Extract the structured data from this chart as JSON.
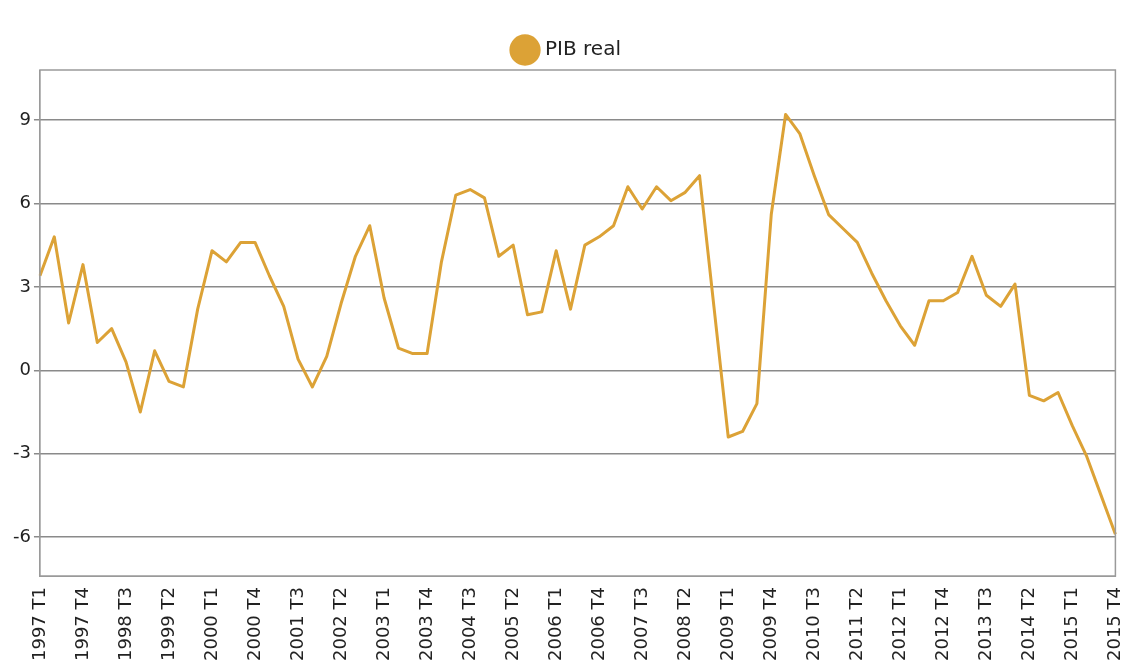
{
  "chart_data": {
    "type": "line",
    "categories": [
      "1997 T1",
      null,
      null,
      "1997 T4",
      null,
      null,
      "1998 T3",
      null,
      null,
      "1999 T2",
      null,
      null,
      "2000 T1",
      null,
      null,
      "2000 T4",
      null,
      null,
      "2001 T3",
      null,
      null,
      "2002 T2",
      null,
      null,
      "2003 T1",
      null,
      null,
      "2003 T4",
      null,
      null,
      "2004 T3",
      null,
      null,
      "2005 T2",
      null,
      null,
      "2006 T1",
      null,
      null,
      "2006 T4",
      null,
      null,
      "2007 T3",
      null,
      null,
      "2008 T2",
      null,
      null,
      "2009 T1",
      null,
      null,
      "2009 T4",
      null,
      null,
      "2010 T3",
      null,
      null,
      "2011 T2",
      null,
      null,
      "2012 T1",
      null,
      null,
      "2012 T4",
      null,
      null,
      "2013 T3",
      null,
      null,
      "2014 T2",
      null,
      null,
      "2015 T1",
      null,
      null,
      "2015 T4"
    ],
    "series": [
      {
        "name": "PIB real",
        "color": "#dca236",
        "values": [
          3.4,
          4.8,
          1.7,
          3.8,
          1.0,
          1.5,
          0.3,
          -1.5,
          0.7,
          -0.4,
          -0.6,
          2.2,
          4.3,
          3.9,
          4.6,
          4.6,
          3.4,
          2.3,
          0.4,
          -0.6,
          0.5,
          2.4,
          4.1,
          5.2,
          2.6,
          0.8,
          0.6,
          0.6,
          3.9,
          6.3,
          6.5,
          6.2,
          4.1,
          4.5,
          2.0,
          2.1,
          4.3,
          2.2,
          4.5,
          4.8,
          5.2,
          6.6,
          5.8,
          6.6,
          6.1,
          6.4,
          7.0,
          2.3,
          -2.4,
          -2.2,
          -1.2,
          5.6,
          9.2,
          8.5,
          7.0,
          5.6,
          5.1,
          4.6,
          3.5,
          2.5,
          1.6,
          0.9,
          2.5,
          2.5,
          2.8,
          4.1,
          2.7,
          2.3,
          3.1,
          -0.9,
          -1.1,
          -0.8,
          -2.0,
          -3.1,
          -4.5,
          -5.9
        ]
      }
    ],
    "ylim": [
      -7.4,
      10.8
    ],
    "yticks": [
      -6,
      -3,
      0,
      3,
      6,
      9
    ],
    "grid": "y",
    "legend": "top",
    "marker": "none",
    "line_style": "solid"
  }
}
